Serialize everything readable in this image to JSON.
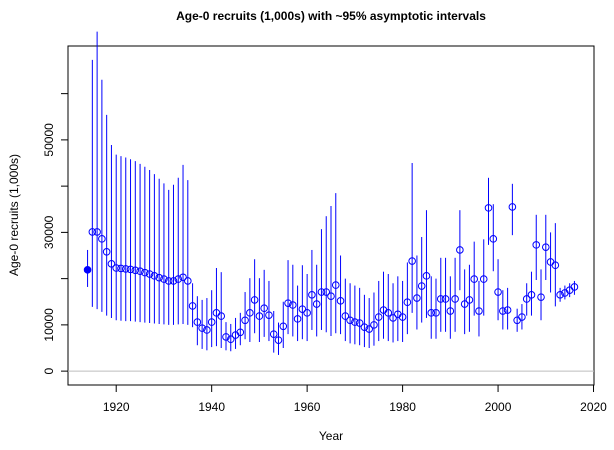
{
  "chart_data": {
    "type": "errorbar",
    "title": "Age-0 recruits (1,000s) with ~95% asymptotic intervals",
    "x_label": "Year",
    "y_label": "Age-0 recruits (1,000s)",
    "xlim": [
      1909.9,
      2020.1
    ],
    "ylim": [
      -3000,
      70300
    ],
    "xticks": [
      1920,
      1940,
      1960,
      1980,
      2000,
      2020
    ],
    "yticks": [
      0,
      10000,
      {
        "value": 20000,
        "label": null
      },
      30000,
      {
        "value": 40000,
        "label": null
      },
      50000,
      {
        "value": 60000,
        "label": null
      }
    ],
    "hline": 0,
    "hline_color": "#bebebe",
    "color": "#0000ff",
    "first_point_filled": true,
    "x": [
      1914,
      1915,
      1916,
      1917,
      1918,
      1919,
      1920,
      1921,
      1922,
      1923,
      1924,
      1925,
      1926,
      1927,
      1928,
      1929,
      1930,
      1931,
      1932,
      1933,
      1934,
      1935,
      1936,
      1937,
      1938,
      1939,
      1940,
      1941,
      1942,
      1943,
      1944,
      1945,
      1946,
      1947,
      1948,
      1949,
      1950,
      1951,
      1952,
      1953,
      1954,
      1955,
      1956,
      1957,
      1958,
      1959,
      1960,
      1961,
      1962,
      1963,
      1964,
      1965,
      1966,
      1967,
      1968,
      1969,
      1970,
      1971,
      1972,
      1973,
      1974,
      1975,
      1976,
      1977,
      1978,
      1979,
      1980,
      1981,
      1982,
      1983,
      1984,
      1985,
      1986,
      1987,
      1988,
      1989,
      1990,
      1991,
      1992,
      1993,
      1994,
      1995,
      1996,
      1997,
      1998,
      1999,
      2000,
      2001,
      2002,
      2003,
      2004,
      2005,
      2006,
      2007,
      2008,
      2009,
      2010,
      2011,
      2012,
      2013,
      2014,
      2015,
      2016
    ],
    "series": [
      {
        "values": [
          21900,
          30100,
          30100,
          28600,
          25800,
          23200,
          22300,
          22200,
          22100,
          22000,
          21800,
          21600,
          21300,
          21000,
          20600,
          20200,
          19900,
          19500,
          19500,
          19900,
          20300,
          19500,
          14100,
          10600,
          9300,
          8900,
          10600,
          12600,
          11900,
          7400,
          6900,
          7800,
          8400,
          11000,
          12600,
          15400,
          11900,
          13600,
          12100,
          8000,
          6700,
          9700,
          14700,
          14300,
          11300,
          13400,
          12600,
          16500,
          14500,
          17100,
          17100,
          16200,
          18600,
          15200,
          11900,
          11000,
          10600,
          10400,
          9500,
          9100,
          10000,
          11700,
          13200,
          12600,
          11500,
          12300,
          11700,
          14900,
          23800,
          15800,
          18400,
          20600,
          12600,
          12600,
          15600,
          15600,
          13000,
          15600,
          26200,
          14500,
          15400,
          19900,
          13000,
          19900,
          35300,
          28600,
          17100,
          13000,
          13200,
          35500,
          11000,
          11700,
          15600,
          16500,
          27300,
          16000,
          26800,
          23600,
          22900,
          16500,
          16900,
          17500,
          18200
        ],
        "lower": [
          18200,
          13900,
          13400,
          12800,
          12000,
          11500,
          11000,
          10900,
          10800,
          10800,
          10700,
          10600,
          10500,
          10400,
          10300,
          10200,
          10100,
          10000,
          10000,
          10100,
          10200,
          10000,
          9500,
          5600,
          4800,
          4500,
          5200,
          5400,
          5000,
          4500,
          4300,
          4800,
          5600,
          6900,
          6300,
          8200,
          6300,
          7400,
          6500,
          4000,
          3500,
          5000,
          8000,
          7500,
          6500,
          6900,
          6500,
          8900,
          7500,
          8900,
          8400,
          7600,
          8200,
          8000,
          6500,
          6000,
          5800,
          5600,
          5200,
          5000,
          5500,
          6500,
          7000,
          6500,
          6200,
          6500,
          6300,
          8000,
          12600,
          9000,
          10500,
          11500,
          7000,
          7000,
          8500,
          8500,
          7000,
          8500,
          17500,
          8000,
          8500,
          12000,
          7500,
          12000,
          27300,
          21600,
          11000,
          9000,
          9000,
          29400,
          8500,
          9000,
          12000,
          12000,
          19700,
          11000,
          19700,
          17000,
          14000,
          15000,
          15500,
          16000,
          16500
        ],
        "upper": [
          26200,
          67300,
          73400,
          63000,
          55400,
          48900,
          46800,
          46500,
          46200,
          45800,
          45400,
          44800,
          44200,
          43500,
          42600,
          41600,
          40600,
          39200,
          40300,
          41800,
          44600,
          41300,
          19000,
          16200,
          15400,
          15800,
          17500,
          22300,
          21400,
          10600,
          10200,
          11500,
          12600,
          17100,
          20100,
          24200,
          20100,
          21900,
          19500,
          13000,
          10500,
          15000,
          24000,
          23000,
          18500,
          22900,
          21000,
          26200,
          23000,
          30700,
          33500,
          35700,
          38500,
          25000,
          20000,
          19000,
          18500,
          18000,
          16500,
          15800,
          17000,
          19500,
          21500,
          21000,
          19000,
          20500,
          19500,
          23500,
          45000,
          25000,
          29000,
          34800,
          20500,
          20000,
          24500,
          24500,
          20500,
          24500,
          34800,
          22000,
          23000,
          28000,
          19500,
          28500,
          41800,
          36100,
          24200,
          17500,
          18000,
          40500,
          13500,
          14500,
          19000,
          21500,
          33800,
          22000,
          33800,
          30000,
          32000,
          18000,
          18500,
          19000,
          19500
        ]
      }
    ]
  }
}
